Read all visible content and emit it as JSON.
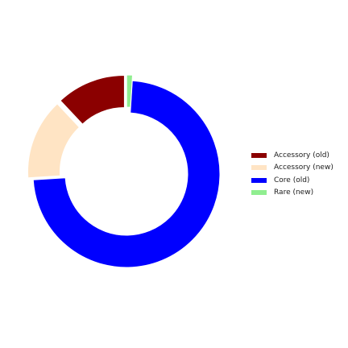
{
  "chart_data": {
    "type": "pie",
    "subtype": "donut",
    "categories": [
      "Accessory (old)",
      "Accessory (new)",
      "Core (old)",
      "Rare (new)"
    ],
    "values": [
      12,
      14,
      73,
      1
    ],
    "colors": [
      "#8b0000",
      "#ffe4c4",
      "#0000ff",
      "#90ee90"
    ],
    "exploded": [
      true,
      true,
      false,
      true
    ],
    "start_angle_deg": 90,
    "direction": "counterclockwise",
    "legend_position": "right",
    "title": ""
  }
}
